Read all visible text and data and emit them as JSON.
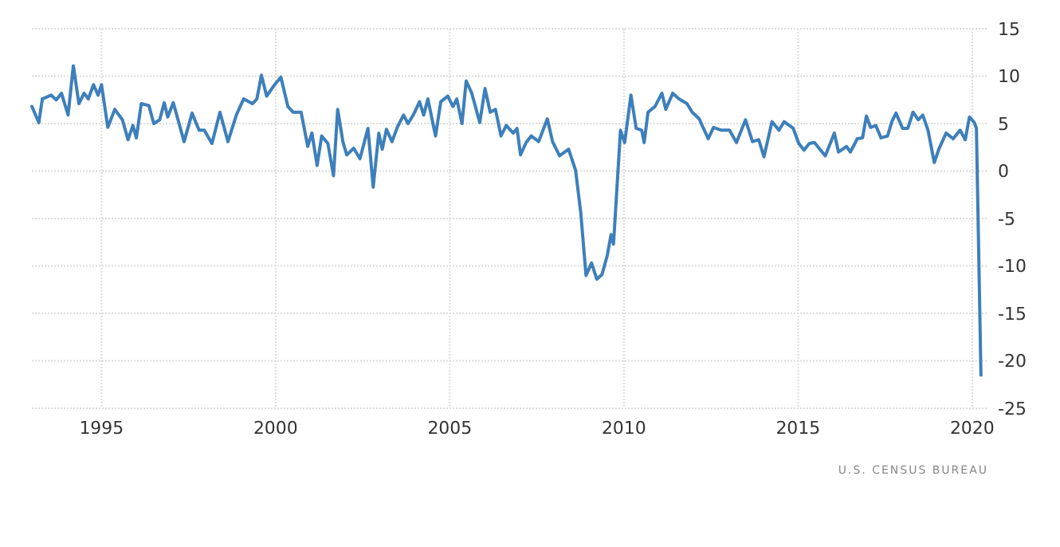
{
  "chart_data": {
    "type": "line",
    "xlim": [
      1993,
      2020.46
    ],
    "xticks": [
      1995,
      2000,
      2005,
      2010,
      2015,
      2020
    ],
    "ylim": [
      -25,
      15
    ],
    "yticks": [
      15,
      10,
      5,
      0,
      -5,
      -10,
      -15,
      -20,
      -25
    ],
    "grid": true,
    "line_style": "solid",
    "marker": "none",
    "annotations": [
      "U.S. CENSUS BUREAU"
    ],
    "series": [
      {
        "color": "#3d7fbb",
        "x": [
          1993.0,
          1993.2,
          1993.3,
          1993.55,
          1993.7,
          1993.85,
          1994.04,
          1994.19,
          1994.35,
          1994.5,
          1994.62,
          1994.77,
          1994.9,
          1995.0,
          1995.18,
          1995.38,
          1995.6,
          1995.76,
          1995.9,
          1996.0,
          1996.14,
          1996.36,
          1996.5,
          1996.67,
          1996.8,
          1996.9,
          1997.06,
          1997.37,
          1997.6,
          1997.8,
          1997.95,
          1998.17,
          1998.4,
          1998.63,
          1998.87,
          1999.08,
          1999.33,
          1999.46,
          1999.59,
          1999.74,
          1999.97,
          2000.15,
          2000.35,
          2000.5,
          2000.73,
          2000.92,
          2001.04,
          2001.19,
          2001.32,
          2001.5,
          2001.66,
          2001.78,
          2001.93,
          2002.04,
          2002.24,
          2002.42,
          2002.65,
          2002.8,
          2002.96,
          2003.06,
          2003.18,
          2003.34,
          2003.49,
          2003.67,
          2003.8,
          2003.95,
          2004.13,
          2004.25,
          2004.37,
          2004.59,
          2004.74,
          2004.94,
          2005.09,
          2005.2,
          2005.35,
          2005.47,
          2005.63,
          2005.86,
          2006.01,
          2006.16,
          2006.31,
          2006.47,
          2006.62,
          2006.82,
          2006.93,
          2007.03,
          2007.19,
          2007.34,
          2007.55,
          2007.8,
          2007.95,
          2008.15,
          2008.41,
          2008.61,
          2008.76,
          2008.91,
          2009.07,
          2009.22,
          2009.37,
          2009.52,
          2009.63,
          2009.7,
          2009.9,
          2010.02,
          2010.2,
          2010.35,
          2010.51,
          2010.58,
          2010.69,
          2010.89,
          2011.09,
          2011.2,
          2011.4,
          2011.58,
          2011.81,
          2011.96,
          2012.16,
          2012.27,
          2012.42,
          2012.57,
          2012.8,
          2013.03,
          2013.23,
          2013.49,
          2013.69,
          2013.87,
          2014.02,
          2014.25,
          2014.45,
          2014.6,
          2014.86,
          2015.02,
          2015.17,
          2015.32,
          2015.47,
          2015.78,
          2016.04,
          2016.16,
          2016.39,
          2016.5,
          2016.7,
          2016.85,
          2016.96,
          2017.08,
          2017.23,
          2017.38,
          2017.57,
          2017.69,
          2017.81,
          2018.0,
          2018.15,
          2018.3,
          2018.45,
          2018.58,
          2018.73,
          2018.91,
          2019.04,
          2019.25,
          2019.45,
          2019.65,
          2019.8,
          2019.92,
          2020.06,
          2020.12,
          2020.25
        ],
        "values": [
          6.8,
          5.1,
          7.6,
          8.0,
          7.5,
          8.2,
          5.9,
          11.1,
          7.1,
          8.2,
          7.6,
          9.1,
          8.0,
          9.1,
          4.6,
          6.5,
          5.4,
          3.3,
          4.8,
          3.5,
          7.1,
          6.9,
          5.0,
          5.4,
          7.2,
          5.7,
          7.2,
          3.1,
          6.1,
          4.3,
          4.3,
          2.9,
          6.2,
          3.1,
          5.9,
          7.6,
          7.1,
          7.6,
          10.1,
          7.9,
          9.1,
          9.9,
          6.8,
          6.2,
          6.2,
          2.6,
          4.0,
          0.6,
          3.7,
          2.9,
          -0.5,
          6.5,
          3.1,
          1.7,
          2.4,
          1.3,
          4.5,
          -1.7,
          4.0,
          2.3,
          4.4,
          3.1,
          4.6,
          5.9,
          5.0,
          5.9,
          7.3,
          5.9,
          7.6,
          3.7,
          7.3,
          7.9,
          6.8,
          7.6,
          5.0,
          9.5,
          8.2,
          5.1,
          8.7,
          6.2,
          6.5,
          3.7,
          4.8,
          4.0,
          4.5,
          1.7,
          3.0,
          3.7,
          3.1,
          5.5,
          3.1,
          1.6,
          2.3,
          0.1,
          -4.4,
          -11.0,
          -9.7,
          -11.4,
          -10.9,
          -8.9,
          -6.7,
          -7.7,
          4.3,
          3.0,
          8.0,
          4.5,
          4.3,
          3.0,
          6.2,
          6.8,
          8.2,
          6.5,
          8.2,
          7.6,
          7.1,
          6.2,
          5.5,
          4.6,
          3.4,
          4.6,
          4.3,
          4.3,
          3.0,
          5.4,
          3.1,
          3.3,
          1.5,
          5.2,
          4.3,
          5.2,
          4.5,
          2.9,
          2.2,
          2.9,
          3.0,
          1.6,
          4.0,
          2.0,
          2.6,
          2.0,
          3.4,
          3.5,
          5.8,
          4.6,
          4.8,
          3.5,
          3.7,
          5.2,
          6.1,
          4.5,
          4.5,
          6.2,
          5.4,
          5.9,
          4.3,
          0.9,
          2.3,
          4.0,
          3.4,
          4.3,
          3.3,
          5.7,
          5.1,
          4.5,
          -21.5
        ]
      }
    ]
  }
}
